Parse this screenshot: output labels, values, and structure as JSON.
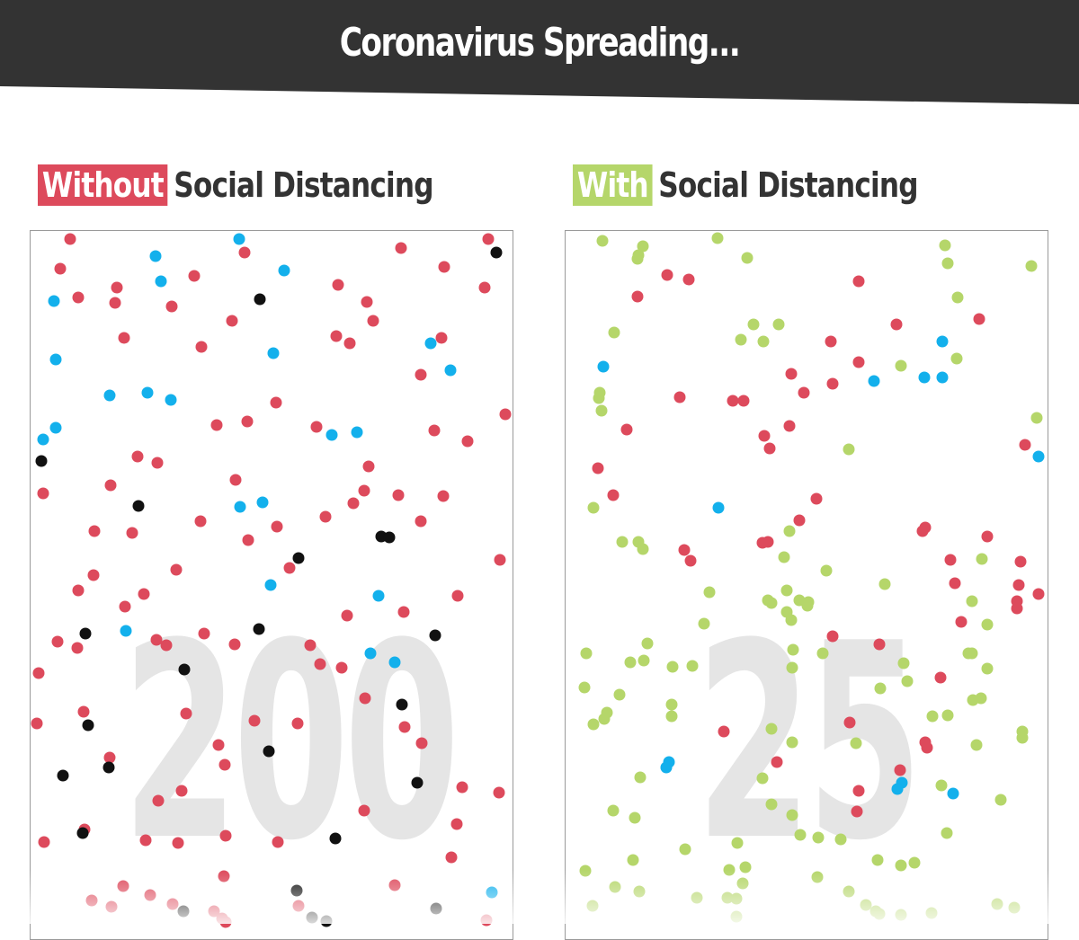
{
  "banner": {
    "title": "Coronavirus Spreading..."
  },
  "colors": {
    "banner_bg": "#333333",
    "infected": "#dd4a5c",
    "healthy": "#b5d66a",
    "recovered": "#13b0ec",
    "dead": "#111111",
    "counter": "#e5e5e5"
  },
  "panels": {
    "left": {
      "tag": "Without",
      "label": "Social Distancing",
      "count": "200"
    },
    "right": {
      "tag": "With",
      "label": "Social Distancing",
      "count": "25"
    }
  }
}
